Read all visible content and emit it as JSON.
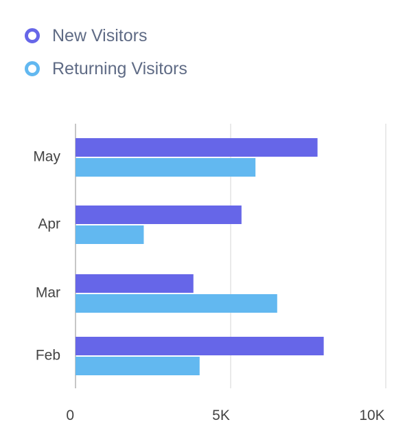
{
  "legend": [
    {
      "label": "New Visitors",
      "color": "#6666e8"
    },
    {
      "label": "Returning Visitors",
      "color": "#62b8f0"
    }
  ],
  "chart_data": {
    "type": "bar",
    "orientation": "horizontal",
    "categories": [
      "May",
      "Apr",
      "Mar",
      "Feb"
    ],
    "series": [
      {
        "name": "New Visitors",
        "color": "#6666e8",
        "values": [
          7800,
          5350,
          3800,
          8000
        ]
      },
      {
        "name": "Returning Visitors",
        "color": "#62b8f0",
        "values": [
          5800,
          2200,
          6500,
          4000
        ]
      }
    ],
    "x_ticks": [
      {
        "value": 0,
        "label": "0"
      },
      {
        "value": 5000,
        "label": "5K"
      },
      {
        "value": 10000,
        "label": "10K"
      }
    ],
    "xlim": [
      0,
      10000
    ],
    "grid": true,
    "legend_position": "top-left"
  }
}
